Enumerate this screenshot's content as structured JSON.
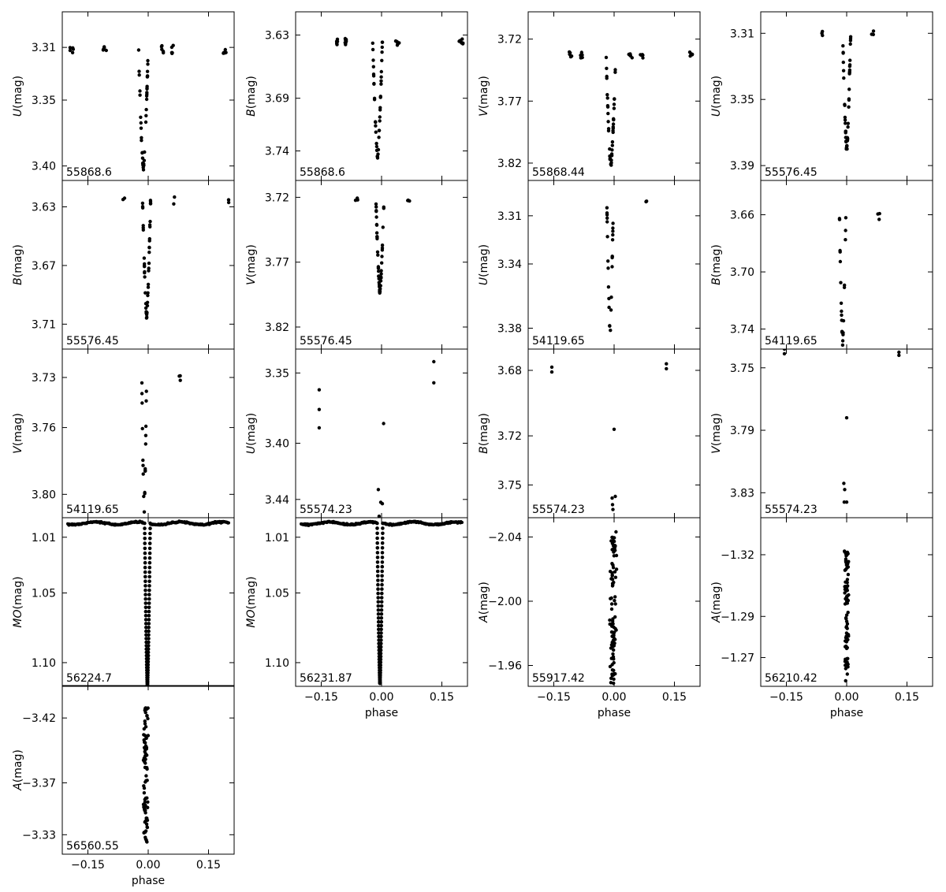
{
  "chart_data": {
    "type": "scatter",
    "x_axis": {
      "label": "phase",
      "ticks": [
        -0.15,
        0.0,
        0.15
      ],
      "tick_labels": [
        "−0.15",
        "0.00",
        "0.15"
      ],
      "xlim": [
        -0.2,
        0.2
      ]
    },
    "panels": [
      {
        "col": 0,
        "row": 0,
        "band": "U",
        "ylabel_var": "U",
        "ylabel_unit": "(mag)",
        "label": "55868.6",
        "ylim": [
          3.411,
          3.283
        ],
        "yticks": [
          3.31,
          3.35,
          3.4
        ],
        "ytick_labels": [
          "3.31",
          "3.35",
          "3.40"
        ],
        "shape": "narrow",
        "depth": 0.09,
        "width": 0.012,
        "center": -0.012,
        "dip_jitter": 0.004,
        "baseline": 3.312,
        "scatter": 0.004,
        "n_out": 24,
        "n_in": 40,
        "gap_x": [
          -0.19,
          -0.11,
          0.035,
          0.06,
          0.19
        ]
      },
      {
        "col": 1,
        "row": 0,
        "band": "B",
        "ylabel_var": "B",
        "ylabel_unit": "(mag)",
        "label": "55868.6",
        "ylim": [
          3.768,
          3.608
        ],
        "yticks": [
          3.63,
          3.69,
          3.74
        ],
        "ytick_labels": [
          "3.63",
          "3.69",
          "3.74"
        ],
        "shape": "narrow",
        "depth": 0.11,
        "width": 0.012,
        "center": -0.01,
        "dip_jitter": 0.004,
        "baseline": 3.637,
        "scatter": 0.004,
        "n_out": 26,
        "n_in": 40,
        "gap_x": [
          -0.11,
          -0.09,
          0.04,
          0.2
        ]
      },
      {
        "col": 2,
        "row": 0,
        "band": "V",
        "ylabel_var": "V",
        "ylabel_unit": "(mag)",
        "label": "55868.44",
        "ylim": [
          3.834,
          3.698
        ],
        "yticks": [
          3.72,
          3.77,
          3.82
        ],
        "ytick_labels": [
          "3.72",
          "3.77",
          "3.82"
        ],
        "shape": "narrow",
        "depth": 0.09,
        "width": 0.012,
        "center": -0.008,
        "dip_jitter": 0.004,
        "baseline": 3.733,
        "scatter": 0.004,
        "n_out": 28,
        "n_in": 40,
        "gap_x": [
          -0.11,
          -0.08,
          0.04,
          0.07,
          0.19
        ]
      },
      {
        "col": 3,
        "row": 0,
        "band": "U",
        "ylabel_var": "U",
        "ylabel_unit": "(mag)",
        "label": "55576.45",
        "ylim": [
          3.399,
          3.297
        ],
        "yticks": [
          3.31,
          3.35,
          3.39
        ],
        "ytick_labels": [
          "3.31",
          "3.35",
          "3.39"
        ],
        "shape": "partial",
        "depth": 0.07,
        "width": 0.01,
        "center": 0.0,
        "dip_jitter": 0.004,
        "baseline": 3.31,
        "scatter": 0.003,
        "n_out": 6,
        "n_in": 45,
        "gap_x": [
          -0.06,
          0.065
        ]
      },
      {
        "col": 0,
        "row": 1,
        "band": "B",
        "ylabel_var": "B",
        "ylabel_unit": "(mag)",
        "label": "55576.45",
        "ylim": [
          3.727,
          3.612
        ],
        "yticks": [
          3.63,
          3.67,
          3.71
        ],
        "ytick_labels": [
          "3.63",
          "3.67",
          "3.71"
        ],
        "shape": "partial",
        "depth": 0.08,
        "width": 0.01,
        "center": -0.004,
        "dip_jitter": 0.004,
        "baseline": 3.625,
        "scatter": 0.003,
        "n_out": 6,
        "n_in": 45,
        "gap_x": [
          -0.06,
          0.065,
          0.2
        ]
      },
      {
        "col": 1,
        "row": 1,
        "band": "V",
        "ylabel_var": "V",
        "ylabel_unit": "(mag)",
        "label": "55576.45",
        "ylim": [
          3.837,
          3.707
        ],
        "yticks": [
          3.72,
          3.77,
          3.82
        ],
        "ytick_labels": [
          "3.72",
          "3.77",
          "3.82"
        ],
        "shape": "partial",
        "depth": 0.07,
        "width": 0.01,
        "center": -0.004,
        "dip_jitter": 0.004,
        "baseline": 3.723,
        "scatter": 0.004,
        "n_out": 6,
        "n_in": 45,
        "gap_x": [
          -0.06,
          0.065
        ]
      },
      {
        "col": 2,
        "row": 1,
        "band": "U",
        "ylabel_var": "U",
        "ylabel_unit": "(mag)",
        "label": "54119.65",
        "ylim": [
          3.393,
          3.288
        ],
        "yticks": [
          3.31,
          3.34,
          3.38
        ],
        "ytick_labels": [
          "3.31",
          "3.34",
          "3.38"
        ],
        "shape": "partial",
        "depth": 0.08,
        "width": 0.008,
        "center": -0.01,
        "dip_jitter": 0.003,
        "baseline": 3.303,
        "scatter": 0.003,
        "n_out": 3,
        "n_in": 25,
        "gap_x": [
          0.08
        ]
      },
      {
        "col": 3,
        "row": 1,
        "band": "B",
        "ylabel_var": "B",
        "ylabel_unit": "(mag)",
        "label": "54119.65",
        "ylim": [
          3.754,
          3.636
        ],
        "yticks": [
          3.66,
          3.7,
          3.74
        ],
        "ytick_labels": [
          "3.66",
          "3.70",
          "3.74"
        ],
        "shape": "partial",
        "depth": 0.09,
        "width": 0.008,
        "center": -0.01,
        "dip_jitter": 0.003,
        "baseline": 3.66,
        "scatter": 0.004,
        "n_out": 3,
        "n_in": 22,
        "gap_x": [
          0.08
        ]
      },
      {
        "col": 0,
        "row": 2,
        "band": "V",
        "ylabel_var": "V",
        "ylabel_unit": "(mag)",
        "label": "54119.65",
        "ylim": [
          3.814,
          3.713
        ],
        "yticks": [
          3.73,
          3.76,
          3.8
        ],
        "ytick_labels": [
          "3.73",
          "3.76",
          "3.80"
        ],
        "shape": "partial",
        "depth": 0.08,
        "width": 0.006,
        "center": -0.01,
        "dip_jitter": 0.003,
        "baseline": 3.73,
        "scatter": 0.003,
        "n_out": 3,
        "n_in": 20,
        "gap_x": [
          0.08
        ]
      },
      {
        "col": 1,
        "row": 2,
        "band": "U",
        "ylabel_var": "U",
        "ylabel_unit": "(mag)",
        "label": "55574.23",
        "ylim": [
          3.453,
          3.333
        ],
        "yticks": [
          3.35,
          3.4,
          3.44
        ],
        "ytick_labels": [
          "3.35",
          "3.40",
          "3.44"
        ],
        "shape": "sparse",
        "points": [
          [
            -0.155,
            3.362
          ],
          [
            -0.155,
            3.376
          ],
          [
            -0.155,
            3.389
          ],
          [
            0.005,
            3.386
          ],
          [
            -0.008,
            3.433
          ],
          [
            -0.002,
            3.442
          ],
          [
            0.002,
            3.443
          ],
          [
            -0.006,
            3.452
          ],
          [
            0.13,
            3.342
          ],
          [
            0.13,
            3.357
          ]
        ]
      },
      {
        "col": 2,
        "row": 2,
        "band": "B",
        "ylabel_var": "B",
        "ylabel_unit": "(mag)",
        "label": "55574.23",
        "ylim": [
          3.77,
          3.667
        ],
        "yticks": [
          3.68,
          3.72,
          3.75
        ],
        "ytick_labels": [
          "3.68",
          "3.72",
          "3.75"
        ],
        "shape": "sparse",
        "points": [
          [
            -0.155,
            3.678
          ],
          [
            -0.155,
            3.681
          ],
          [
            0.0,
            3.716
          ],
          [
            -0.005,
            3.758
          ],
          [
            0.003,
            3.757
          ],
          [
            -0.004,
            3.762
          ],
          [
            -0.003,
            3.765
          ],
          [
            0.13,
            3.676
          ],
          [
            0.13,
            3.679
          ]
        ]
      },
      {
        "col": 3,
        "row": 2,
        "band": "V",
        "ylabel_var": "V",
        "ylabel_unit": "(mag)",
        "label": "55574.23",
        "ylim": [
          3.846,
          3.738
        ],
        "yticks": [
          3.75,
          3.79,
          3.83
        ],
        "ytick_labels": [
          "3.75",
          "3.79",
          "3.83"
        ],
        "shape": "sparse",
        "points": [
          [
            -0.155,
            3.738
          ],
          [
            -0.155,
            3.741
          ],
          [
            0.0,
            3.782
          ],
          [
            -0.007,
            3.824
          ],
          [
            -0.005,
            3.828
          ],
          [
            -0.006,
            3.836
          ],
          [
            0.0,
            3.836
          ],
          [
            0.13,
            3.74
          ],
          [
            0.13,
            3.742
          ]
        ]
      },
      {
        "col": 0,
        "row": 3,
        "band": "MO",
        "ylabel_var": "MO",
        "ylabel_unit": "(mag)",
        "label": "56224.7",
        "ylim": [
          1.117,
          0.996
        ],
        "yticks": [
          1.01,
          1.05,
          1.1
        ],
        "ytick_labels": [
          "1.01",
          "1.05",
          "1.10"
        ],
        "shape": "full",
        "depth": 0.117,
        "width": 0.007,
        "center": -0.002,
        "dip_jitter": 0.0,
        "baseline": 1.0,
        "scatter": 0.001,
        "n_out": 300,
        "n_in": 90,
        "gap_x": []
      },
      {
        "col": 1,
        "row": 3,
        "band": "MO",
        "ylabel_var": "MO",
        "ylabel_unit": "(mag)",
        "label": "56231.87",
        "ylim": [
          1.117,
          0.996
        ],
        "yticks": [
          1.01,
          1.05,
          1.1
        ],
        "ytick_labels": [
          "1.01",
          "1.05",
          "1.10"
        ],
        "shape": "full",
        "depth": 0.115,
        "width": 0.007,
        "center": -0.004,
        "dip_jitter": 0.0,
        "baseline": 1.0,
        "scatter": 0.001,
        "n_out": 300,
        "n_in": 90,
        "gap_x": []
      },
      {
        "col": 2,
        "row": 3,
        "band": "A",
        "ylabel_var": "A",
        "ylabel_unit": "(mag)",
        "label": "55917.42",
        "ylim": [
          -1.947,
          -2.052
        ],
        "yticks": [
          -2.04,
          -2.0,
          -1.96
        ],
        "ytick_labels": [
          "−2.04",
          "−2.00",
          "−1.96"
        ],
        "shape": "column",
        "y_range": [
          -2.046,
          -1.948
        ],
        "x_center": -0.002,
        "x_spread": 0.012,
        "n_in": 90
      },
      {
        "col": 3,
        "row": 3,
        "band": "A",
        "ylabel_var": "A",
        "ylabel_unit": "(mag)",
        "label": "56210.42",
        "ylim": [
          -1.256,
          -1.338
        ],
        "yticks": [
          -1.32,
          -1.29,
          -1.27
        ],
        "ytick_labels": [
          "−1.32",
          "−1.29",
          "−1.27"
        ],
        "shape": "column",
        "y_range": [
          -1.323,
          -1.258
        ],
        "x_center": 0.0,
        "x_spread": 0.008,
        "n_in": 80
      },
      {
        "col": 0,
        "row": 4,
        "band": "A",
        "ylabel_var": "A",
        "ylabel_unit": "(mag)",
        "label": "56560.55",
        "ylim": [
          -3.315,
          -3.445
        ],
        "yticks": [
          -3.42,
          -3.37,
          -3.33
        ],
        "ytick_labels": [
          "−3.42",
          "−3.37",
          "−3.33"
        ],
        "shape": "column",
        "y_range": [
          -3.43,
          -3.321
        ],
        "x_center": -0.006,
        "x_spread": 0.01,
        "n_in": 80
      }
    ]
  }
}
